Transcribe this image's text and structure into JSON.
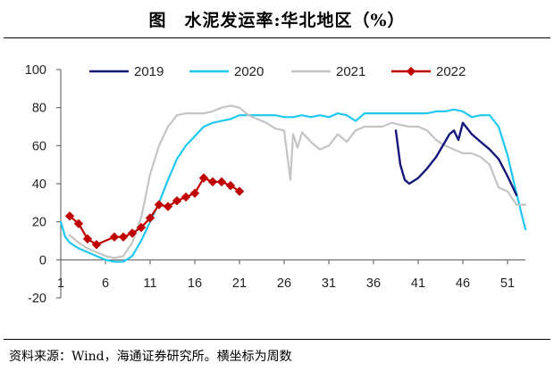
{
  "chart_data": {
    "type": "line",
    "title": "图　水泥发运率:华北地区（%）",
    "xlabel": "",
    "ylabel": "",
    "ylim": [
      -20,
      100
    ],
    "xlim": [
      1,
      53
    ],
    "x_ticks": [
      1,
      6,
      11,
      16,
      21,
      26,
      31,
      36,
      41,
      46,
      51
    ],
    "y_ticks": [
      -20,
      0,
      20,
      40,
      60,
      80,
      100
    ],
    "grid": false,
    "legend_position": "top",
    "series": [
      {
        "name": "2019",
        "color": "#16177a",
        "marker": "none",
        "x": [
          38.5,
          39,
          39.5,
          40,
          41,
          42,
          43,
          44,
          44.5,
          45,
          45.5,
          46,
          47,
          48,
          49,
          50,
          51,
          52
        ],
        "y": [
          68,
          50,
          42,
          40,
          43,
          48,
          54,
          62,
          66,
          68,
          63,
          72,
          66,
          62,
          58,
          53,
          44,
          34
        ]
      },
      {
        "name": "2020",
        "color": "#1ec8f0",
        "marker": "none",
        "x": [
          1,
          1.5,
          2,
          3,
          4,
          5,
          6,
          7,
          8,
          9,
          10,
          11,
          12,
          13,
          14,
          15,
          16,
          17,
          18,
          19,
          20,
          21,
          22,
          23,
          24,
          25,
          26,
          27,
          28,
          29,
          30,
          31,
          32,
          33,
          34,
          35,
          36,
          37,
          38,
          39,
          40,
          41,
          42,
          43,
          44,
          45,
          46,
          47,
          48,
          49,
          50,
          51,
          52,
          53
        ],
        "y": [
          20,
          12,
          9,
          6,
          4,
          2,
          0,
          -1,
          -1,
          2,
          10,
          20,
          30,
          42,
          53,
          60,
          65,
          70,
          72,
          73,
          74,
          76,
          76,
          76,
          76,
          76,
          75,
          75,
          76,
          75,
          76,
          75,
          77,
          76,
          73,
          77,
          77,
          77,
          77,
          77,
          77,
          77,
          77,
          78,
          78,
          79,
          78,
          75,
          76,
          76,
          70,
          55,
          35,
          16
        ]
      },
      {
        "name": "2021",
        "color": "#c4c4c4",
        "marker": "none",
        "x": [
          2,
          3,
          4,
          5,
          6,
          7,
          8,
          9,
          10,
          11,
          12,
          13,
          14,
          15,
          16,
          17,
          18,
          19,
          20,
          21,
          22,
          23,
          24,
          25,
          26,
          26.7,
          27,
          27.5,
          28,
          29,
          30,
          31,
          32,
          33,
          34,
          35,
          36,
          37,
          38,
          39,
          40,
          41,
          42,
          43,
          44,
          45,
          46,
          47,
          48,
          49,
          50,
          51,
          52,
          53
        ],
        "y": [
          13,
          9,
          6,
          4,
          2,
          1,
          2,
          9,
          22,
          45,
          60,
          70,
          76,
          77,
          77,
          77,
          78,
          80,
          81,
          80,
          76,
          74,
          72,
          69,
          68,
          42,
          66,
          59,
          67,
          62,
          58,
          60,
          66,
          62,
          68,
          70,
          70,
          70,
          72,
          71,
          70,
          70,
          68,
          63,
          60,
          58,
          56,
          56,
          54,
          50,
          38,
          36,
          29,
          29
        ]
      },
      {
        "name": "2022",
        "color": "#c00000",
        "marker": "diamond",
        "x": [
          2,
          3,
          4,
          5,
          7,
          8,
          9,
          10,
          11,
          12,
          13,
          14,
          15,
          16,
          17,
          18,
          19,
          20,
          21
        ],
        "y": [
          23,
          19,
          11,
          8,
          12,
          12,
          14,
          17,
          22,
          29,
          28,
          31,
          33,
          35,
          43,
          41,
          41,
          39,
          36
        ]
      }
    ]
  },
  "footer": {
    "source": "资料来源：Wind，海通证券研究所。横坐标为周数"
  }
}
